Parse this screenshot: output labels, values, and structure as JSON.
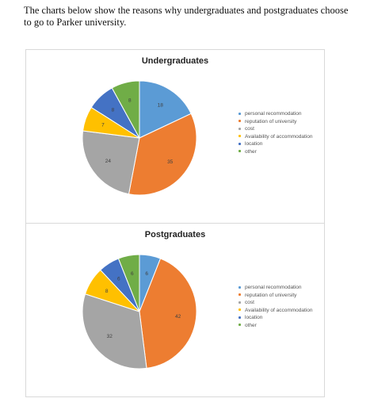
{
  "intro_text": "The charts below show the reasons why undergraduates and postgraduates choose to go to Parker university.",
  "chart_data": [
    {
      "type": "pie",
      "title": "Undergraduates",
      "categories": [
        "personal recommodation",
        "reputation of university",
        "cost",
        "Availability of accommodation",
        "location",
        "other"
      ],
      "values": [
        18,
        35,
        24,
        7,
        8,
        8
      ],
      "colors": [
        "#5b9bd5",
        "#ed7d31",
        "#a5a5a5",
        "#ffc000",
        "#4472c4",
        "#70ad47"
      ],
      "legend_position": "right"
    },
    {
      "type": "pie",
      "title": "Postgraduates",
      "categories": [
        "personal recommodation",
        "reputation of university",
        "cost",
        "Availability of accommodation",
        "location",
        "other"
      ],
      "values": [
        6,
        42,
        32,
        8,
        6,
        6
      ],
      "colors": [
        "#5b9bd5",
        "#ed7d31",
        "#a5a5a5",
        "#ffc000",
        "#4472c4",
        "#70ad47"
      ],
      "legend_position": "right"
    }
  ]
}
